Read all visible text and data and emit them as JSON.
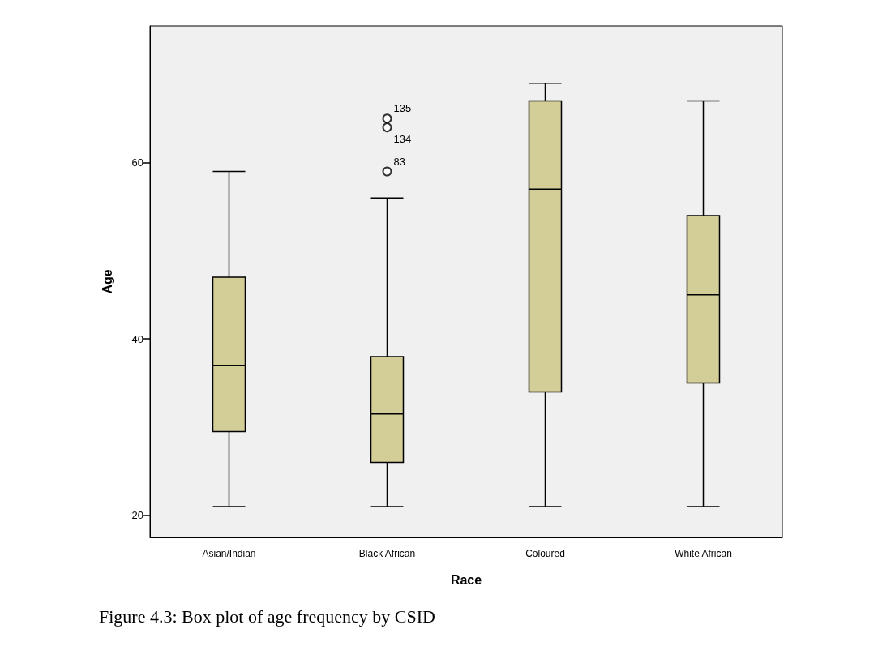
{
  "chart_data": {
    "type": "box",
    "xlabel": "Race",
    "ylabel": "Age",
    "categories": [
      "Asian/Indian",
      "Black African",
      "Coloured",
      "White African"
    ],
    "series": [
      {
        "color": "#d3cd97",
        "boxes": [
          {
            "low": 21,
            "q1": 29.5,
            "median": 37,
            "q3": 47,
            "high": 59
          },
          {
            "low": 21,
            "q1": 26,
            "median": 31.5,
            "q3": 38,
            "high": 56
          },
          {
            "low": 21,
            "q1": 34,
            "median": 57,
            "q3": 67,
            "high": 69
          },
          {
            "low": 21,
            "q1": 35,
            "median": 45,
            "q3": 54,
            "high": 67
          }
        ]
      },
      {
        "type": "scatter",
        "color": "#000000",
        "marker": "circle",
        "x": [
          "Black African",
          "Black African",
          "Black African"
        ],
        "values": [
          59,
          64,
          65
        ]
      }
    ],
    "ylim": [
      17.5,
      75.5
    ],
    "yticks": [
      20,
      40,
      60
    ],
    "grid": false,
    "annotations": [
      {
        "text": "135",
        "x": "Black African",
        "y": 65
      },
      {
        "text": "134",
        "x": "Black African",
        "y": 64
      },
      {
        "text": "83",
        "x": "Black African",
        "y": 59
      },
      "Figure 4.3: Box plot of age frequency by CSID"
    ]
  }
}
